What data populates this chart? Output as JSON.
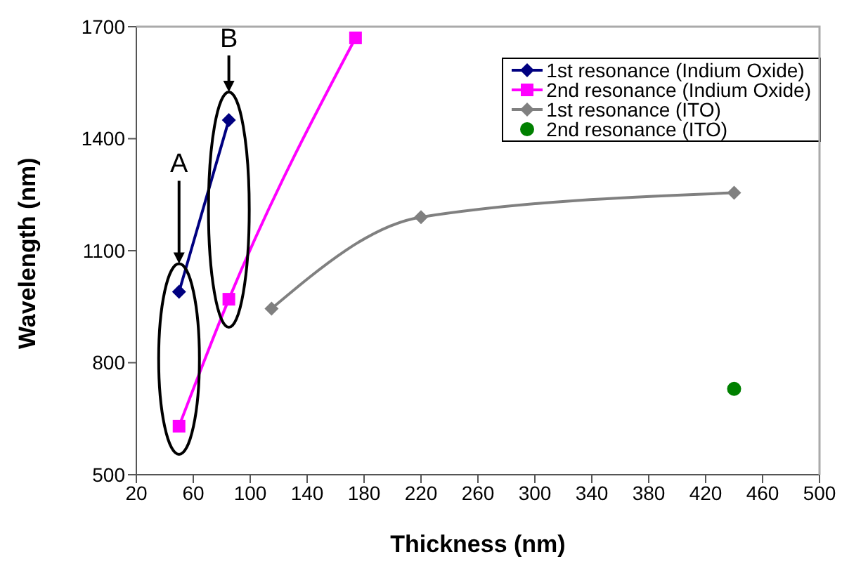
{
  "chart_data": {
    "type": "line",
    "xlabel": "Thickness (nm)",
    "ylabel": "Wavelength (nm)",
    "xlim": [
      20,
      500
    ],
    "xticks": [
      20,
      60,
      100,
      140,
      180,
      220,
      260,
      300,
      340,
      380,
      420,
      460,
      500
    ],
    "ylim": [
      500,
      1700
    ],
    "yticks": [
      500,
      800,
      1100,
      1400,
      1700
    ],
    "grid": false,
    "legend": "top right",
    "series": [
      {
        "name": "1st resonance (Indium Oxide)",
        "color": "#000080",
        "x": [
          50,
          85
        ],
        "values": [
          990,
          1450
        ],
        "marker": "diamond"
      },
      {
        "name": "2nd resonance (Indium Oxide)",
        "color": "#ff00ff",
        "x": [
          50,
          85,
          174
        ],
        "values": [
          630,
          970,
          1670
        ],
        "marker": "square"
      },
      {
        "name": "1st resonance (ITO)",
        "color": "#808080",
        "x": [
          115,
          220,
          440
        ],
        "values": [
          945,
          1190,
          1255
        ],
        "marker": "diamond"
      },
      {
        "name": "2nd resonance (ITO)",
        "color": "#008000",
        "x": [
          440
        ],
        "values": [
          730
        ],
        "marker": "circle",
        "type": "scatter"
      }
    ],
    "annotations": [
      "A",
      "B"
    ]
  }
}
